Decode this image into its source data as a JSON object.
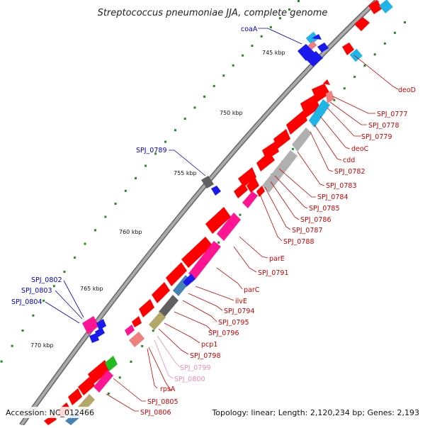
{
  "title": "Streptococcus pneumoniae JJA, complete genome",
  "footer": {
    "accession": "Accession: NC_012466",
    "summary": "Topology: linear; Length: 2,120,234 bp; Genes: 2,193"
  },
  "scale_ticks": [
    "745 kbp",
    "750 kbp",
    "755 kbp",
    "760 kbp",
    "765 kbp",
    "770 kbp"
  ],
  "colors": {
    "backbone": "#888888",
    "forward_gene": "#ff0000",
    "pink_gene": "#ff1493",
    "light_pink_gene": "#f08080",
    "cyan_gene": "#1fb5e6",
    "gray_gene": "#b0b0b0",
    "dark_gray_gene": "#606060",
    "olive_gene": "#b3a76a",
    "green_gene": "#22bb22",
    "blue_gene": "#1a1aee",
    "steelblue_gene": "#4682b4",
    "label_red": "#cc0000",
    "label_blue": "#0000cc",
    "label_pink": "#f08cb0",
    "tick_green": "#228b22"
  },
  "left_labels": [
    "coaA",
    "SPJ_0789",
    "SPJ_0802",
    "SPJ_0803",
    "SPJ_0804"
  ],
  "right_labels": [
    "deoD",
    "SPJ_0777",
    "SPJ_0778",
    "SPJ_0779",
    "deoC",
    "cdd",
    "SPJ_0782",
    "SPJ_0783",
    "SPJ_0784",
    "SPJ_0785",
    "SPJ_0786",
    "SPJ_0787",
    "SPJ_0788",
    "parE",
    "SPJ_0791",
    "parC",
    "ilvE",
    "SPJ_0794",
    "SPJ_0795",
    "SPJ_0796",
    "pcp1",
    "SPJ_0798",
    "SPJ_0799",
    "SPJ_0800",
    "rpsA",
    "SPJ_0805",
    "SPJ_0806"
  ]
}
